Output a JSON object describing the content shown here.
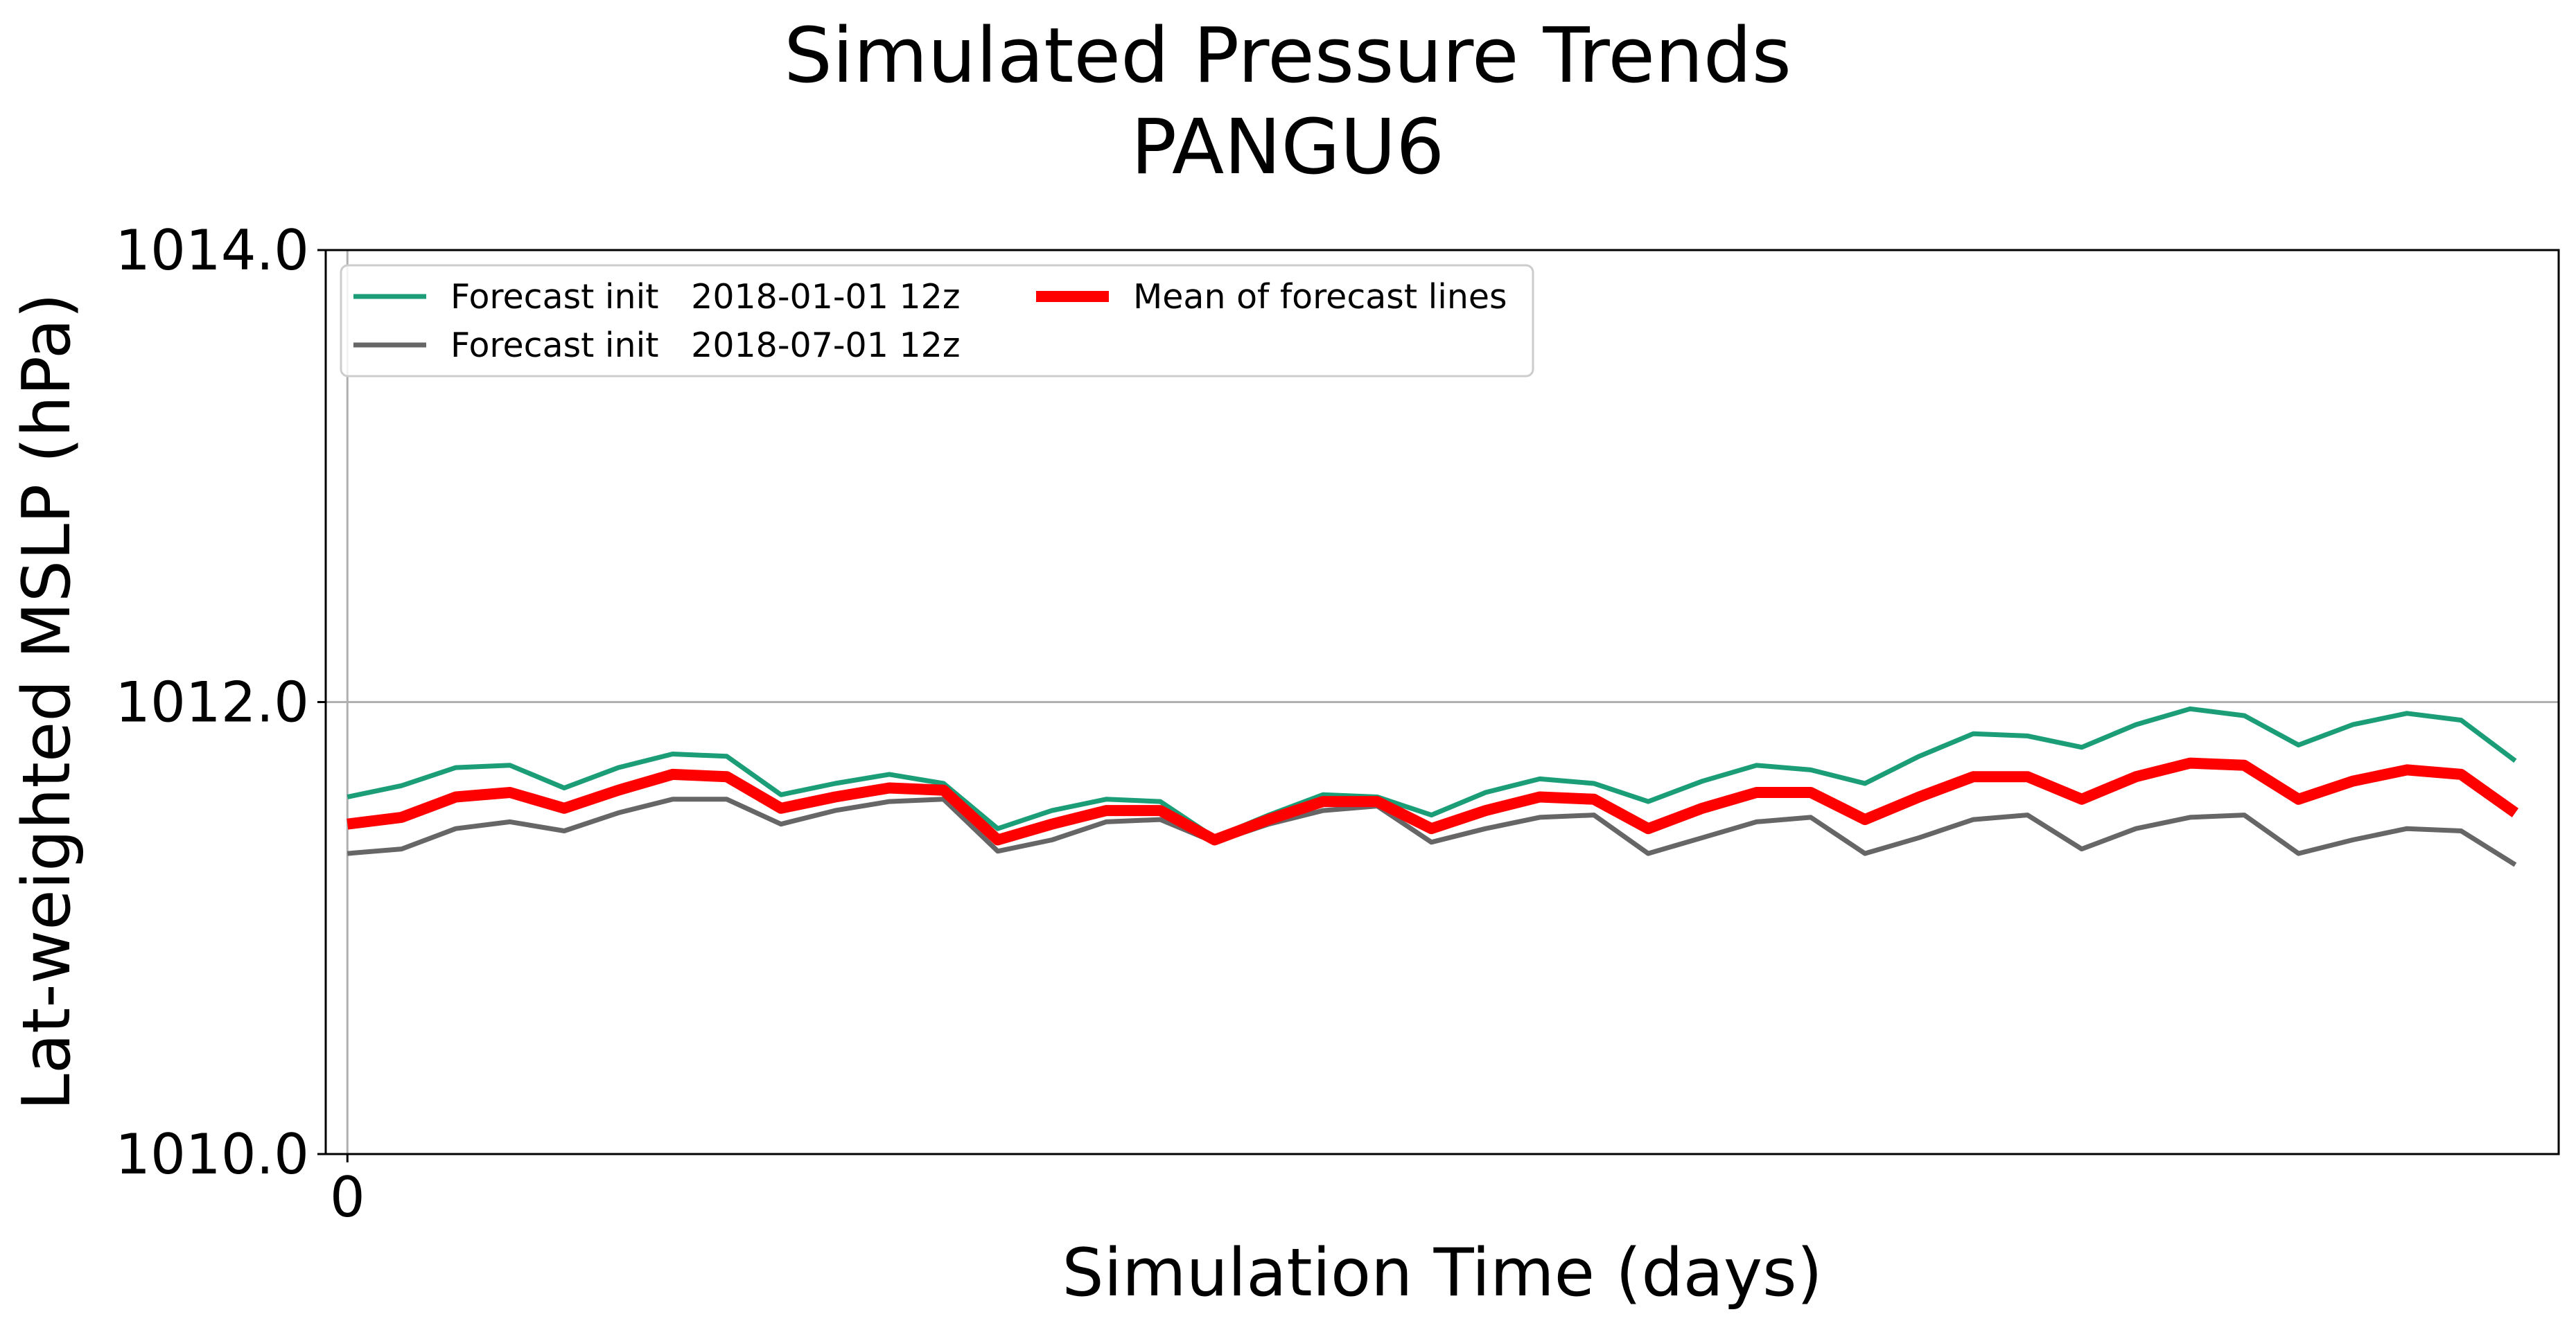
{
  "chart_data": {
    "type": "line",
    "title": "Simulated Pressure Trends",
    "subtitle": "PANGU6",
    "xlabel": "Simulation Time (days)",
    "ylabel": "Lat-weighted MSLP (hPa)",
    "xlim": [
      -0.1,
      10.2
    ],
    "ylim": [
      1010.0,
      1014.0
    ],
    "x_ticks": [
      0
    ],
    "x_tick_labels": [
      "0"
    ],
    "y_ticks": [
      1010.0,
      1012.0,
      1014.0
    ],
    "y_tick_labels": [
      "1010.0",
      "1012.0",
      "1014.0"
    ],
    "grid": true,
    "legend_position": "top-left",
    "x": [
      0,
      0.25,
      0.5,
      0.75,
      1,
      1.25,
      1.5,
      1.75,
      2,
      2.25,
      2.5,
      2.75,
      3,
      3.25,
      3.5,
      3.75,
      4,
      4.25,
      4.5,
      4.75,
      5,
      5.25,
      5.5,
      5.75,
      6,
      6.25,
      6.5,
      6.75,
      7,
      7.25,
      7.5,
      7.75,
      8,
      8.25,
      8.5,
      8.75,
      9,
      9.25,
      9.5,
      9.75,
      10
    ],
    "series": [
      {
        "name": "Forecast init   2018-01-01 12z",
        "color": "#1b9e77",
        "stroke": "thin",
        "values": [
          1011.58,
          1011.63,
          1011.71,
          1011.72,
          1011.62,
          1011.71,
          1011.77,
          1011.76,
          1011.59,
          1011.64,
          1011.68,
          1011.64,
          1011.44,
          1011.52,
          1011.57,
          1011.56,
          1011.4,
          1011.5,
          1011.59,
          1011.58,
          1011.5,
          1011.6,
          1011.66,
          1011.64,
          1011.56,
          1011.65,
          1011.72,
          1011.7,
          1011.64,
          1011.76,
          1011.86,
          1011.85,
          1011.8,
          1011.9,
          1011.97,
          1011.94,
          1011.81,
          1011.9,
          1011.95,
          1011.92,
          1011.74
        ]
      },
      {
        "name": "Forecast init   2018-07-01 12z",
        "color": "#666666",
        "stroke": "thin",
        "values": [
          1011.33,
          1011.35,
          1011.44,
          1011.47,
          1011.43,
          1011.51,
          1011.57,
          1011.57,
          1011.46,
          1011.52,
          1011.56,
          1011.57,
          1011.34,
          1011.39,
          1011.47,
          1011.48,
          1011.38,
          1011.46,
          1011.52,
          1011.54,
          1011.38,
          1011.44,
          1011.49,
          1011.5,
          1011.33,
          1011.4,
          1011.47,
          1011.49,
          1011.33,
          1011.4,
          1011.48,
          1011.5,
          1011.35,
          1011.44,
          1011.49,
          1011.5,
          1011.33,
          1011.39,
          1011.44,
          1011.43,
          1011.28
        ]
      },
      {
        "name": "Mean of forecast lines",
        "color": "#ff0000",
        "stroke": "thick",
        "values": [
          1011.46,
          1011.49,
          1011.58,
          1011.6,
          1011.53,
          1011.61,
          1011.68,
          1011.67,
          1011.53,
          1011.58,
          1011.62,
          1011.61,
          1011.39,
          1011.46,
          1011.52,
          1011.52,
          1011.39,
          1011.48,
          1011.56,
          1011.56,
          1011.44,
          1011.52,
          1011.58,
          1011.57,
          1011.44,
          1011.53,
          1011.6,
          1011.6,
          1011.48,
          1011.58,
          1011.67,
          1011.67,
          1011.57,
          1011.67,
          1011.73,
          1011.72,
          1011.57,
          1011.65,
          1011.7,
          1011.68,
          1011.51
        ]
      }
    ]
  }
}
